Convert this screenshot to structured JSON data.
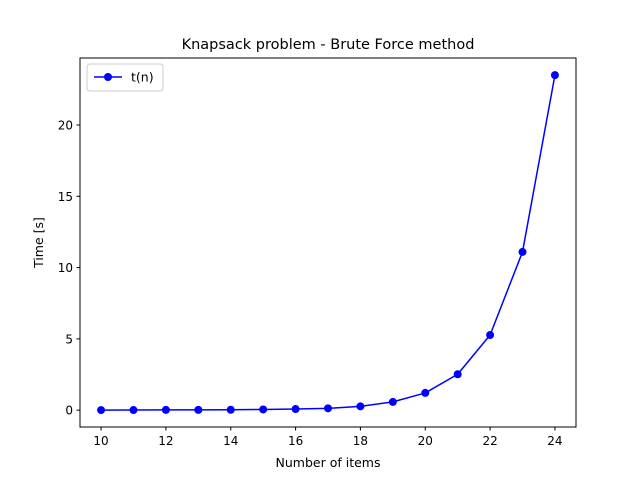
{
  "chart_data": {
    "type": "line",
    "title": "Knapsack problem - Brute Force method",
    "xlabel": "Number of items",
    "ylabel": "Time [s]",
    "xlim": [
      9.35,
      24.65
    ],
    "ylim": [
      -1.18,
      24.7
    ],
    "xticks": [
      10,
      12,
      14,
      16,
      18,
      20,
      22,
      24
    ],
    "yticks": [
      0,
      5,
      10,
      15,
      20
    ],
    "grid": false,
    "legend": {
      "position": "top-left"
    },
    "series": [
      {
        "name": "t(n)",
        "color": "#0000ff",
        "marker": "circle",
        "x": [
          10,
          11,
          12,
          13,
          14,
          15,
          16,
          17,
          18,
          19,
          20,
          21,
          22,
          23,
          24
        ],
        "y": [
          0.005,
          0.01,
          0.02,
          0.02,
          0.03,
          0.05,
          0.08,
          0.13,
          0.27,
          0.58,
          1.21,
          2.52,
          5.27,
          11.1,
          23.5
        ]
      }
    ]
  }
}
